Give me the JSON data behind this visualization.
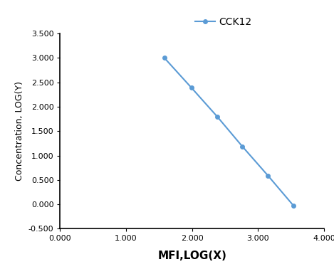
{
  "x": [
    1.58,
    1.99,
    2.38,
    2.76,
    3.15,
    3.54
  ],
  "y": [
    3.0,
    2.39,
    1.8,
    1.19,
    0.59,
    -0.03
  ],
  "line_color": "#5b9bd5",
  "marker_color": "#5b9bd5",
  "marker_style": "o",
  "marker_size": 4,
  "line_width": 1.5,
  "legend_label": "CCK12",
  "xlabel": "MFI,LOG(X)",
  "ylabel": "Concentration, LOG(Y)",
  "xlim": [
    0.0,
    4.0
  ],
  "ylim": [
    -0.5,
    3.5
  ],
  "xticks": [
    0.0,
    1.0,
    2.0,
    3.0,
    4.0
  ],
  "yticks": [
    -0.5,
    0.0,
    0.5,
    1.0,
    1.5,
    2.0,
    2.5,
    3.0,
    3.5
  ],
  "xlabel_fontsize": 11,
  "ylabel_fontsize": 9,
  "tick_fontsize": 8,
  "legend_fontsize": 10,
  "background_color": "#ffffff"
}
